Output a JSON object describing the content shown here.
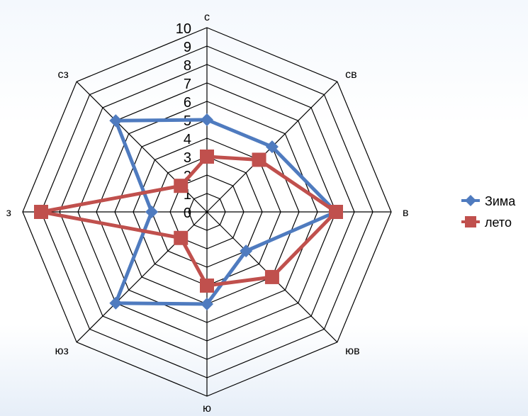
{
  "chart_data": {
    "type": "radar",
    "categories": [
      "с",
      "св",
      "в",
      "юв",
      "ю",
      "юз",
      "з",
      "сз"
    ],
    "rlim": [
      0,
      10
    ],
    "ticks": [
      "0",
      "1",
      "2",
      "3",
      "4",
      "5",
      "6",
      "7",
      "8",
      "9",
      "10"
    ],
    "grid": true,
    "legend_position": "right",
    "series": [
      {
        "name": "Зима",
        "values": [
          5,
          5,
          7,
          3,
          5,
          7,
          3,
          7
        ],
        "color": "#4f7bbf",
        "marker": "diamond"
      },
      {
        "name": "лето",
        "values": [
          3,
          4,
          7,
          5,
          4,
          2,
          9,
          2
        ],
        "color": "#c0504d",
        "marker": "square"
      }
    ]
  }
}
